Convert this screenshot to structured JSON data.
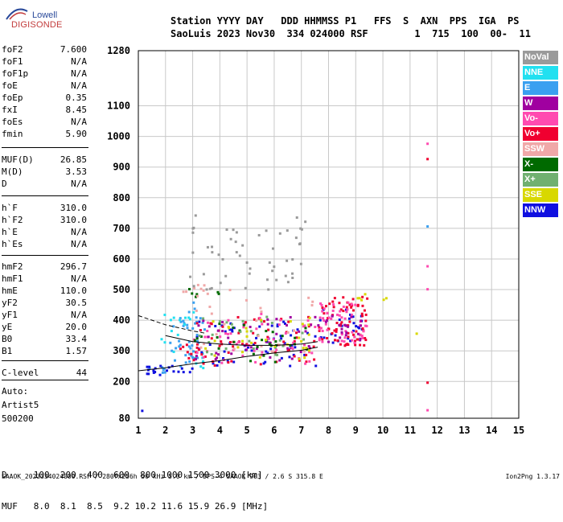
{
  "logo": {
    "top": "Lowell",
    "bottom": "DIGISONDE"
  },
  "header": {
    "line1": "Station YYYY DAY   DDD HHMMSS P1   FFS  S  AXN  PPS  IGA  PS",
    "line2": "SaoLuis 2023 Nov30  334 024000 RSF        1  715  100  00-  11"
  },
  "params": [
    {
      "label": "foF2",
      "value": "7.600"
    },
    {
      "label": "foF1",
      "value": "N/A"
    },
    {
      "label": "foF1p",
      "value": "N/A"
    },
    {
      "label": "foE",
      "value": "N/A"
    },
    {
      "label": "foEp",
      "value": "0.35"
    },
    {
      "label": "fxI",
      "value": "8.45"
    },
    {
      "label": "foEs",
      "value": "N/A"
    },
    {
      "label": "fmin",
      "value": "5.90"
    },
    {
      "label": "MUF(D)",
      "value": "26.85"
    },
    {
      "label": "M(D)",
      "value": "3.53"
    },
    {
      "label": "D",
      "value": "N/A"
    },
    {
      "label": "h`F",
      "value": "310.0"
    },
    {
      "label": "h`F2",
      "value": "310.0"
    },
    {
      "label": "h`E",
      "value": "N/A"
    },
    {
      "label": "h`Es",
      "value": "N/A"
    },
    {
      "label": "hmF2",
      "value": "296.7"
    },
    {
      "label": "hmF1",
      "value": "N/A"
    },
    {
      "label": "hmE",
      "value": "110.0"
    },
    {
      "label": "yF2",
      "value": "30.5"
    },
    {
      "label": "yF1",
      "value": "N/A"
    },
    {
      "label": "yE",
      "value": "20.0"
    },
    {
      "label": "B0",
      "value": "33.4"
    },
    {
      "label": "B1",
      "value": "1.57"
    },
    {
      "label": "C-level",
      "value": "44"
    },
    {
      "label": "Auto:",
      "value": ""
    },
    {
      "label": "Artist5",
      "value": ""
    },
    {
      "label": "500200",
      "value": ""
    }
  ],
  "legend": [
    {
      "label": "NoVal",
      "bg": "#9a9a9a",
      "fg": "#ffffff"
    },
    {
      "label": "NNE",
      "bg": "#22e0f0",
      "fg": "#ffffff"
    },
    {
      "label": "E",
      "bg": "#3aa0f0",
      "fg": "#ffffff"
    },
    {
      "label": "W",
      "bg": "#a000a0",
      "fg": "#ffffff"
    },
    {
      "label": "Vo-",
      "bg": "#ff4ab0",
      "fg": "#ffffff"
    },
    {
      "label": "Vo+",
      "bg": "#f00030",
      "fg": "#ffffff"
    },
    {
      "label": "SSW",
      "bg": "#f0a8a8",
      "fg": "#ffffff"
    },
    {
      "label": "X-",
      "bg": "#006a00",
      "fg": "#ffffff"
    },
    {
      "label": "X+",
      "bg": "#70b070",
      "fg": "#ffffff"
    },
    {
      "label": "SSE",
      "bg": "#d8d800",
      "fg": "#ffffff"
    },
    {
      "label": "NNW",
      "bg": "#1010e0",
      "fg": "#ffffff"
    }
  ],
  "muf_table": {
    "d_line": "D     100  200  400  600  800 1000 1500 3000 [km]",
    "muf_line": "MUF   8.0  8.1  8.5  9.2 10.2 11.6 15.9 26.9 [MHz]"
  },
  "footer": "SAAOK_2023334024000.RSF / 280fx256h 50 kHz 5.0 km / DPS-4 SAAOK 903 / 2.6 S 315.8 E",
  "version": "Ion2Png 1.3.17",
  "chart_data": {
    "type": "scatter",
    "title": "",
    "xlabel": "",
    "ylabel": "",
    "xlim": [
      1,
      15
    ],
    "ylim": [
      80,
      1280
    ],
    "x_ticks": [
      1,
      2,
      3,
      4,
      5,
      6,
      7,
      8,
      9,
      10,
      11,
      12,
      13,
      14,
      15
    ],
    "y_ticks": [
      80,
      200,
      300,
      400,
      500,
      600,
      700,
      800,
      900,
      1000,
      1100,
      1280
    ],
    "grid": true,
    "series": [
      {
        "name": "E",
        "color": "#3aa0f0",
        "clusters": [
          [
            1.2,
            2.2,
            225,
            250,
            6
          ],
          [
            2.0,
            3.2,
            250,
            420,
            25
          ],
          [
            2.6,
            3.4,
            280,
            470,
            18
          ]
        ]
      },
      {
        "name": "NNE",
        "color": "#22e0f0",
        "clusters": [
          [
            1.8,
            3.3,
            300,
            430,
            14
          ],
          [
            2.8,
            3.6,
            240,
            300,
            8
          ]
        ]
      },
      {
        "name": "NNW",
        "color": "#1010e0",
        "clusters": [
          [
            1.1,
            3.0,
            225,
            255,
            20
          ],
          [
            3.0,
            7.6,
            250,
            400,
            60
          ],
          [
            7.6,
            9.2,
            330,
            440,
            25
          ]
        ]
      },
      {
        "name": "Vo+",
        "color": "#f00030",
        "clusters": [
          [
            3.0,
            7.6,
            255,
            420,
            60
          ],
          [
            7.6,
            9.4,
            320,
            480,
            70
          ],
          [
            2.4,
            3.2,
            270,
            330,
            10
          ]
        ]
      },
      {
        "name": "Vo-",
        "color": "#ff4ab0",
        "clusters": [
          [
            3.0,
            7.6,
            260,
            430,
            50
          ],
          [
            7.6,
            9.4,
            330,
            470,
            50
          ]
        ]
      },
      {
        "name": "W",
        "color": "#a000a0",
        "clusters": [
          [
            3.0,
            7.6,
            270,
            420,
            40
          ],
          [
            7.8,
            9.2,
            330,
            420,
            20
          ]
        ]
      },
      {
        "name": "X-",
        "color": "#006a00",
        "clusters": [
          [
            3.0,
            7.5,
            260,
            400,
            30
          ],
          [
            2.8,
            4.0,
            480,
            510,
            6
          ]
        ]
      },
      {
        "name": "X+",
        "color": "#70b070",
        "clusters": [
          [
            3.2,
            7.4,
            280,
            420,
            25
          ]
        ]
      },
      {
        "name": "SSE",
        "color": "#d8d800",
        "clusters": [
          [
            3.0,
            7.4,
            270,
            420,
            30
          ],
          [
            9.0,
            10.2,
            460,
            490,
            6
          ]
        ]
      },
      {
        "name": "SSW",
        "color": "#f0a8a8",
        "clusters": [
          [
            3.0,
            7.6,
            300,
            520,
            25
          ],
          [
            2.4,
            3.6,
            480,
            520,
            8
          ]
        ]
      },
      {
        "name": "NoVal",
        "color": "#9a9a9a",
        "clusters": [
          [
            2.8,
            7.4,
            500,
            760,
            35
          ],
          [
            3.5,
            7.0,
            520,
            700,
            20
          ]
        ]
      }
    ],
    "isolated_points": [
      {
        "x": 11.6,
        "y": 980,
        "color": "#ff4ab0"
      },
      {
        "x": 11.6,
        "y": 930,
        "color": "#f00030"
      },
      {
        "x": 11.6,
        "y": 710,
        "color": "#3aa0f0"
      },
      {
        "x": 11.6,
        "y": 580,
        "color": "#ff4ab0"
      },
      {
        "x": 11.6,
        "y": 505,
        "color": "#ff4ab0"
      },
      {
        "x": 11.6,
        "y": 200,
        "color": "#f00030"
      },
      {
        "x": 11.6,
        "y": 110,
        "color": "#ff4ab0"
      },
      {
        "x": 11.2,
        "y": 360,
        "color": "#d8d800"
      },
      {
        "x": 1.1,
        "y": 108,
        "color": "#1010e0"
      }
    ],
    "trace_lines": [
      {
        "name": "virtual-height-trace",
        "points": [
          [
            1.0,
            235
          ],
          [
            2.0,
            245
          ],
          [
            3.0,
            258
          ],
          [
            4.0,
            268
          ],
          [
            5.0,
            282
          ],
          [
            6.0,
            293
          ],
          [
            7.0,
            302
          ],
          [
            7.6,
            312
          ]
        ]
      },
      {
        "name": "upper-trace",
        "points": [
          [
            2.0,
            350
          ],
          [
            3.0,
            330
          ],
          [
            4.0,
            322
          ],
          [
            5.0,
            318
          ],
          [
            6.0,
            318
          ],
          [
            7.0,
            322
          ],
          [
            7.6,
            330
          ]
        ]
      }
    ],
    "dashed_lines": [
      {
        "name": "profile-dashed",
        "points": [
          [
            1.0,
            415
          ],
          [
            2.0,
            385
          ],
          [
            3.0,
            365
          ],
          [
            3.5,
            357
          ]
        ]
      }
    ]
  }
}
